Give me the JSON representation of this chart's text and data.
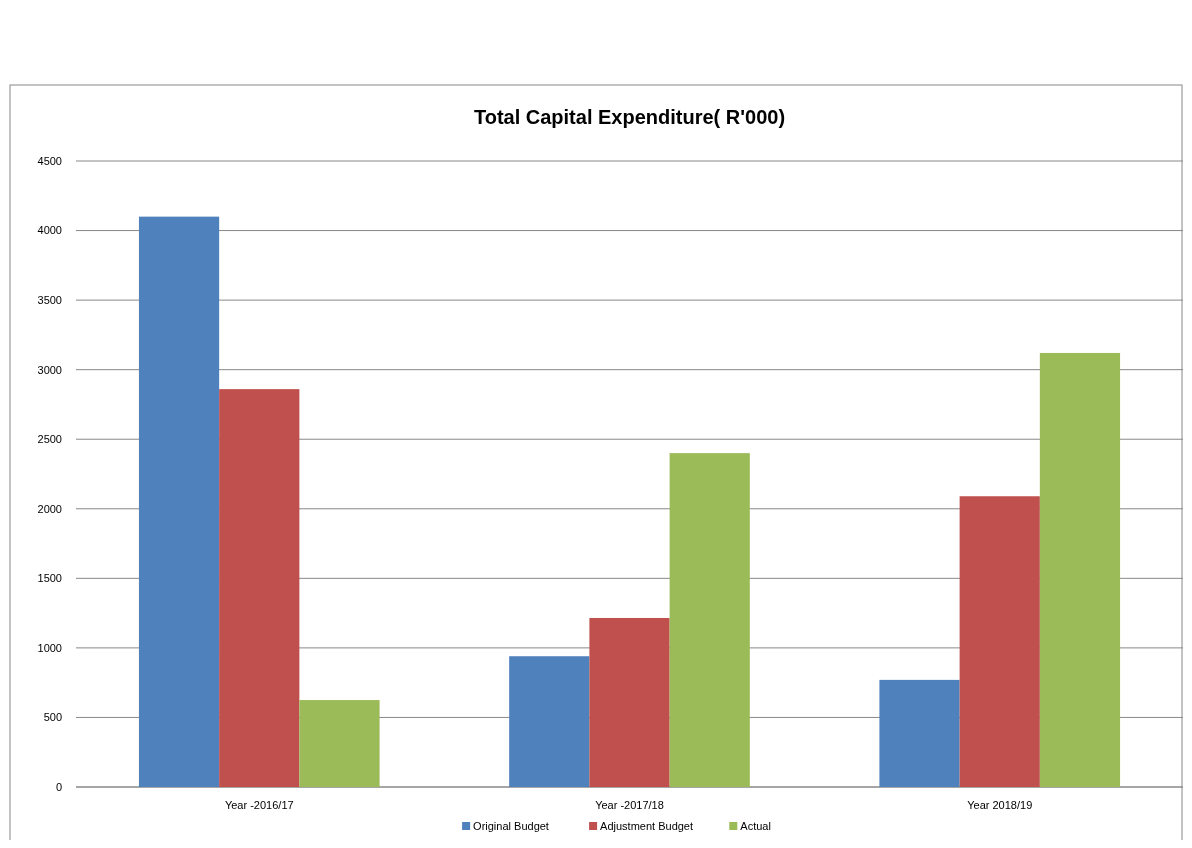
{
  "chart_data": {
    "type": "bar",
    "title": "Total Capital Expenditure( R'000)",
    "categories": [
      "Year -2016/17",
      "Year -2017/18",
      "Year 2018/19"
    ],
    "series": [
      {
        "name": "Original Budget",
        "color": "#4f81bd",
        "values": [
          4100,
          940,
          770
        ]
      },
      {
        "name": "Adjustment Budget",
        "color": "#c0504d",
        "values": [
          2860,
          1215,
          2090
        ]
      },
      {
        "name": "Actual",
        "color": "#9bbb59",
        "values": [
          625,
          2400,
          3120
        ]
      }
    ],
    "ylim": [
      0,
      4500
    ],
    "yticks": [
      0,
      500,
      1000,
      1500,
      2000,
      2500,
      3000,
      3500,
      4000,
      4500
    ],
    "grid": "y",
    "legend": "bottom"
  }
}
